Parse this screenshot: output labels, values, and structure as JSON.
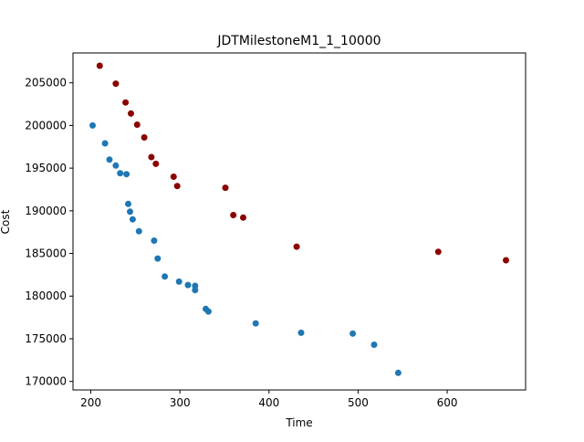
{
  "chart_data": {
    "type": "scatter",
    "title": "JDTMilestoneM1_1_10000",
    "xlabel": "Time",
    "ylabel": "Cost",
    "xlim": [
      180,
      688
    ],
    "ylim": [
      169000,
      208500
    ],
    "xticks": [
      200,
      300,
      400,
      500,
      600
    ],
    "xtick_labels": [
      "200",
      "300",
      "400",
      "500",
      "600"
    ],
    "yticks": [
      170000,
      175000,
      180000,
      185000,
      190000,
      195000,
      200000,
      205000
    ],
    "ytick_labels": [
      "170000",
      "175000",
      "180000",
      "185000",
      "190000",
      "195000",
      "200000",
      "205000"
    ],
    "grid": false,
    "series": [
      {
        "color": "#1f77b4",
        "points": [
          [
            202,
            200000
          ],
          [
            216,
            197900
          ],
          [
            221,
            196000
          ],
          [
            228,
            195300
          ],
          [
            233,
            194400
          ],
          [
            240,
            194300
          ],
          [
            242,
            190800
          ],
          [
            244,
            189900
          ],
          [
            247,
            189000
          ],
          [
            254,
            187600
          ],
          [
            271,
            186500
          ],
          [
            275,
            184400
          ],
          [
            283,
            182300
          ],
          [
            299,
            181700
          ],
          [
            309,
            181300
          ],
          [
            317,
            181200
          ],
          [
            317,
            180700
          ],
          [
            329,
            178500
          ],
          [
            332,
            178200
          ],
          [
            385,
            176800
          ],
          [
            436,
            175700
          ],
          [
            494,
            175600
          ],
          [
            518,
            174300
          ],
          [
            545,
            171000
          ]
        ]
      },
      {
        "color": "#8b0000",
        "points": [
          [
            210,
            207000
          ],
          [
            228,
            204900
          ],
          [
            239,
            202700
          ],
          [
            245,
            201400
          ],
          [
            252,
            200100
          ],
          [
            260,
            198600
          ],
          [
            268,
            196300
          ],
          [
            273,
            195500
          ],
          [
            293,
            194000
          ],
          [
            297,
            192900
          ],
          [
            351,
            192700
          ],
          [
            360,
            189500
          ],
          [
            371,
            189200
          ],
          [
            431,
            185800
          ],
          [
            590,
            185200
          ],
          [
            666,
            184200
          ]
        ]
      }
    ]
  }
}
